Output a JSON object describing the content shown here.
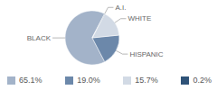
{
  "chart_data": {
    "type": "pie",
    "categories": [
      "BLACK",
      "HISPANIC",
      "WHITE",
      "A.I."
    ],
    "values": [
      65.1,
      19.0,
      15.7,
      0.2
    ],
    "value_labels": [
      "65.1%",
      "19.0%",
      "15.7%",
      "0.2%"
    ],
    "colors": [
      "#a3b3c9",
      "#6c88aa",
      "#d2dae5",
      "#2f5378"
    ]
  }
}
